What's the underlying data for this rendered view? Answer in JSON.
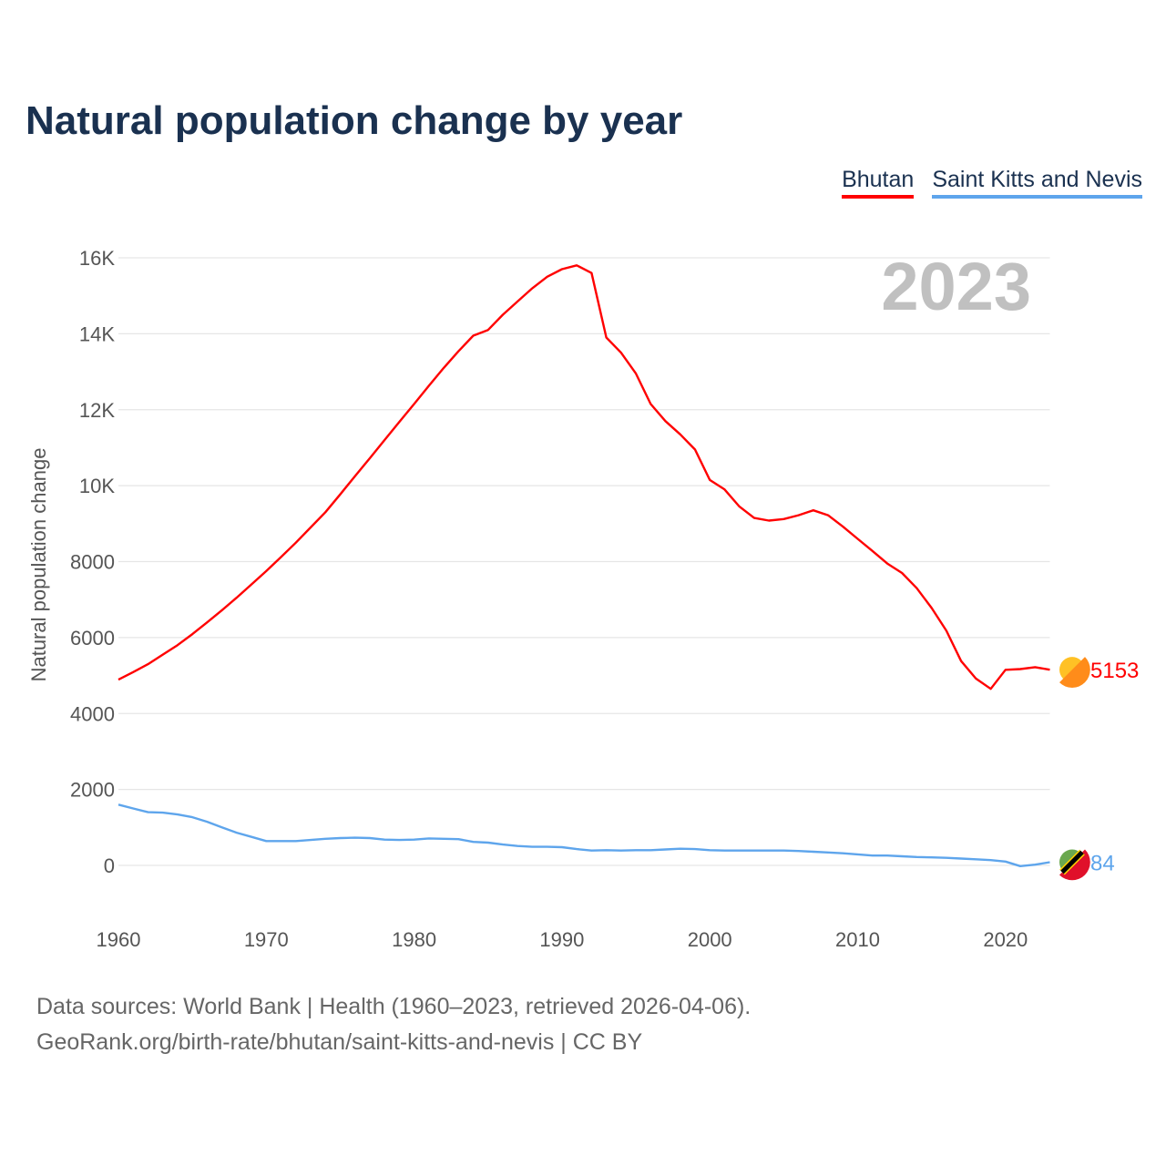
{
  "title": "Natural population change by year",
  "legend": [
    "Bhutan",
    "Saint Kitts and Nevis"
  ],
  "year_label": "2023",
  "footer": {
    "line1": "Data sources: World Bank | Health (1960–2023, retrieved 2026-04-06).",
    "line2": "GeoRank.org/birth-rate/bhutan/saint-kitts-and-nevis | CC BY"
  },
  "chart_data": {
    "type": "line",
    "title": "Natural population change by year",
    "xlabel": "",
    "ylabel": "Natural population change",
    "xlim": [
      1960,
      2023
    ],
    "ylim": [
      -1000,
      16000
    ],
    "x_ticks": [
      1960,
      1970,
      1980,
      1990,
      2000,
      2010,
      2020
    ],
    "y_ticks": [
      0,
      2000,
      4000,
      6000,
      8000,
      10000,
      12000,
      14000,
      16000
    ],
    "y_tick_labels": [
      "0",
      "2000",
      "4000",
      "6000",
      "8000",
      "10K",
      "12K",
      "14K",
      "16K"
    ],
    "grid": true,
    "legend_position": "top-right",
    "x_start": 1960,
    "series": [
      {
        "name": "Bhutan",
        "color": "#ff0000",
        "end_label": "5153",
        "values": [
          4890,
          5090,
          5300,
          5550,
          5800,
          6090,
          6400,
          6720,
          7050,
          7400,
          7750,
          8120,
          8500,
          8900,
          9300,
          9770,
          10250,
          10720,
          11200,
          11680,
          12150,
          12630,
          13100,
          13540,
          13950,
          14100,
          14500,
          14850,
          15200,
          15500,
          15700,
          15800,
          15600,
          13900,
          13500,
          12950,
          12150,
          11700,
          11350,
          10950,
          10150,
          9900,
          9450,
          9150,
          9080,
          9120,
          9220,
          9350,
          9220,
          8920,
          8600,
          8280,
          7950,
          7700,
          7300,
          6780,
          6180,
          5380,
          4920,
          4650,
          5150,
          5170,
          5220,
          5153
        ]
      },
      {
        "name": "Saint Kitts and Nevis",
        "color": "#5ea5ec",
        "end_label": "84",
        "values": [
          1600,
          1500,
          1400,
          1390,
          1340,
          1270,
          1150,
          1000,
          860,
          750,
          640,
          640,
          640,
          670,
          700,
          720,
          730,
          720,
          680,
          670,
          680,
          710,
          700,
          690,
          620,
          600,
          550,
          510,
          490,
          490,
          480,
          430,
          390,
          400,
          390,
          400,
          400,
          420,
          440,
          430,
          400,
          390,
          390,
          390,
          390,
          390,
          380,
          360,
          340,
          320,
          290,
          260,
          260,
          240,
          220,
          210,
          200,
          180,
          160,
          140,
          100,
          -20,
          20,
          84
        ]
      }
    ]
  }
}
